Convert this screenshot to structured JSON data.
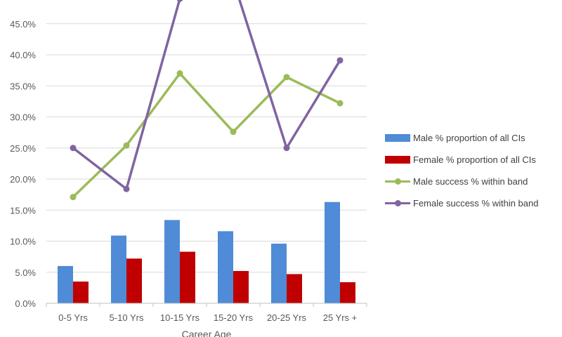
{
  "chart_data": {
    "type": "bar",
    "categories": [
      "0-5 Yrs",
      "5-10 Yrs",
      "10-15 Yrs",
      "15-20 Yrs",
      "20-25 Yrs",
      "25 Yrs +"
    ],
    "xlabel": "Career Age",
    "ylabel": "",
    "ylim": [
      0,
      0.5
    ],
    "yticks": [
      "0.0%",
      "5.0%",
      "10.0%",
      "15.0%",
      "20.0%",
      "25.0%",
      "30.0%",
      "35.0%",
      "40.0%",
      "45.0%"
    ],
    "grid": true,
    "legend_position": "right",
    "series": [
      {
        "name": "Male % proportion of all CIs",
        "kind": "bar",
        "color": "#4F8BD6",
        "values": [
          0.06,
          0.109,
          0.134,
          0.116,
          0.096,
          0.163
        ]
      },
      {
        "name": "Female % proportion of all CIs",
        "kind": "bar",
        "color": "#C00000",
        "values": [
          0.035,
          0.072,
          0.083,
          0.052,
          0.047,
          0.034
        ]
      },
      {
        "name": "Male success % within band",
        "kind": "line",
        "color": "#9BBB59",
        "values": [
          0.171,
          0.254,
          0.37,
          0.276,
          0.364,
          0.322
        ]
      },
      {
        "name": "Female success % within band",
        "kind": "line",
        "color": "#8064A2",
        "values": [
          0.25,
          0.184,
          0.49,
          0.52,
          0.25,
          0.391
        ]
      }
    ]
  }
}
